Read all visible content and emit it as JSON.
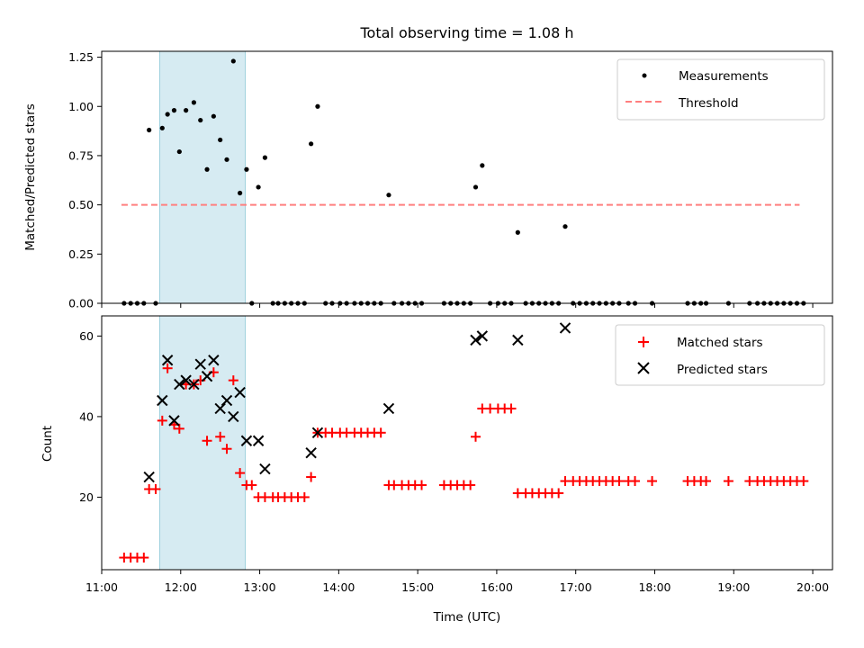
{
  "chart_data": [
    {
      "type": "scatter",
      "title": "Total observing time = 1.08 h",
      "xlabel": "",
      "ylabel": "Matched/Predicted stars",
      "xlim": [
        "11:00",
        "20:15"
      ],
      "ylim": [
        0,
        1.28
      ],
      "x_ticks": [
        "11:00",
        "12:00",
        "13:00",
        "14:00",
        "15:00",
        "16:00",
        "17:00",
        "18:00",
        "19:00",
        "20:00"
      ],
      "y_ticks": [
        "0.00",
        "0.25",
        "0.50",
        "0.75",
        "1.00",
        "1.25"
      ],
      "shaded_span": [
        "11:44",
        "12:49"
      ],
      "shade_color": "#add8e6",
      "legend": {
        "position": "top-right",
        "entries": [
          "Measurements",
          "Threshold"
        ]
      },
      "threshold": {
        "name": "Threshold",
        "value": 0.5,
        "x_range": [
          "11:15",
          "19:50"
        ],
        "color": "#ff7f7f"
      },
      "series": [
        {
          "name": "Measurements",
          "color": "#000000",
          "points": [
            [
              "11:17",
              0
            ],
            [
              "11:22",
              0
            ],
            [
              "11:27",
              0
            ],
            [
              "11:32",
              0
            ],
            [
              "11:36",
              0.88
            ],
            [
              "11:41",
              0
            ],
            [
              "11:46",
              0.89
            ],
            [
              "11:50",
              0.96
            ],
            [
              "11:55",
              0.98
            ],
            [
              "11:59",
              0.77
            ],
            [
              "12:04",
              0.98
            ],
            [
              "12:10",
              1.02
            ],
            [
              "12:15",
              0.93
            ],
            [
              "12:20",
              0.68
            ],
            [
              "12:25",
              0.95
            ],
            [
              "12:30",
              0.83
            ],
            [
              "12:35",
              0.73
            ],
            [
              "12:40",
              1.23
            ],
            [
              "12:45",
              0.56
            ],
            [
              "12:50",
              0.68
            ],
            [
              "12:54",
              0
            ],
            [
              "12:59",
              0.59
            ],
            [
              "13:04",
              0.74
            ],
            [
              "13:10",
              0
            ],
            [
              "13:14",
              0
            ],
            [
              "13:19",
              0
            ],
            [
              "13:24",
              0
            ],
            [
              "13:29",
              0
            ],
            [
              "13:34",
              0
            ],
            [
              "13:39",
              0.81
            ],
            [
              "13:44",
              1.0
            ],
            [
              "13:50",
              0
            ],
            [
              "13:55",
              0
            ],
            [
              "14:01",
              0
            ],
            [
              "14:06",
              0
            ],
            [
              "14:12",
              0
            ],
            [
              "14:17",
              0
            ],
            [
              "14:22",
              0
            ],
            [
              "14:27",
              0
            ],
            [
              "14:32",
              0
            ],
            [
              "14:38",
              0.55
            ],
            [
              "14:42",
              0
            ],
            [
              "14:48",
              0
            ],
            [
              "14:53",
              0
            ],
            [
              "14:58",
              0
            ],
            [
              "15:03",
              0
            ],
            [
              "15:20",
              0
            ],
            [
              "15:25",
              0
            ],
            [
              "15:30",
              0
            ],
            [
              "15:35",
              0
            ],
            [
              "15:40",
              0
            ],
            [
              "15:44",
              0.59
            ],
            [
              "15:49",
              0.7
            ],
            [
              "15:55",
              0
            ],
            [
              "16:01",
              0
            ],
            [
              "16:06",
              0
            ],
            [
              "16:11",
              0
            ],
            [
              "16:16",
              0.36
            ],
            [
              "16:22",
              0
            ],
            [
              "16:27",
              0
            ],
            [
              "16:32",
              0
            ],
            [
              "16:37",
              0
            ],
            [
              "16:42",
              0
            ],
            [
              "16:47",
              0
            ],
            [
              "16:52",
              0.39
            ],
            [
              "16:58",
              0
            ],
            [
              "17:03",
              0
            ],
            [
              "17:08",
              0
            ],
            [
              "17:13",
              0
            ],
            [
              "17:18",
              0
            ],
            [
              "17:23",
              0
            ],
            [
              "17:28",
              0
            ],
            [
              "17:33",
              0
            ],
            [
              "17:40",
              0
            ],
            [
              "17:45",
              0
            ],
            [
              "17:58",
              0
            ],
            [
              "18:25",
              0
            ],
            [
              "18:30",
              0
            ],
            [
              "18:35",
              0
            ],
            [
              "18:39",
              0
            ],
            [
              "18:56",
              0
            ],
            [
              "19:12",
              0
            ],
            [
              "19:18",
              0
            ],
            [
              "19:23",
              0
            ],
            [
              "19:28",
              0
            ],
            [
              "19:33",
              0
            ],
            [
              "19:38",
              0
            ],
            [
              "19:43",
              0
            ],
            [
              "19:48",
              0
            ],
            [
              "19:53",
              0
            ]
          ]
        }
      ]
    },
    {
      "type": "scatter",
      "title": "",
      "xlabel": "Time (UTC)",
      "ylabel": "Count",
      "xlim": [
        "11:00",
        "20:15"
      ],
      "ylim": [
        2,
        65
      ],
      "x_ticks": [
        "11:00",
        "12:00",
        "13:00",
        "14:00",
        "15:00",
        "16:00",
        "17:00",
        "18:00",
        "19:00",
        "20:00"
      ],
      "y_ticks": [
        "20",
        "40",
        "60"
      ],
      "shaded_span": [
        "11:44",
        "12:49"
      ],
      "shade_color": "#add8e6",
      "legend": {
        "position": "top-right",
        "entries": [
          "Matched stars",
          "Predicted stars"
        ]
      },
      "series": [
        {
          "name": "Matched stars",
          "marker": "+",
          "color": "#ff0000",
          "points": [
            [
              "11:17",
              5
            ],
            [
              "11:22",
              5
            ],
            [
              "11:27",
              5
            ],
            [
              "11:32",
              5
            ],
            [
              "11:36",
              22
            ],
            [
              "11:41",
              22
            ],
            [
              "11:46",
              39
            ],
            [
              "11:50",
              52
            ],
            [
              "11:55",
              38
            ],
            [
              "11:59",
              37
            ],
            [
              "12:04",
              48
            ],
            [
              "12:10",
              48
            ],
            [
              "12:15",
              49
            ],
            [
              "12:20",
              34
            ],
            [
              "12:25",
              51
            ],
            [
              "12:30",
              35
            ],
            [
              "12:35",
              32
            ],
            [
              "12:40",
              49
            ],
            [
              "12:45",
              26
            ],
            [
              "12:50",
              23
            ],
            [
              "12:54",
              23
            ],
            [
              "12:59",
              20
            ],
            [
              "13:04",
              20
            ],
            [
              "13:10",
              20
            ],
            [
              "13:14",
              20
            ],
            [
              "13:19",
              20
            ],
            [
              "13:24",
              20
            ],
            [
              "13:29",
              20
            ],
            [
              "13:34",
              20
            ],
            [
              "13:39",
              25
            ],
            [
              "13:44",
              36
            ],
            [
              "13:50",
              36
            ],
            [
              "13:55",
              36
            ],
            [
              "14:01",
              36
            ],
            [
              "14:06",
              36
            ],
            [
              "14:12",
              36
            ],
            [
              "14:17",
              36
            ],
            [
              "14:22",
              36
            ],
            [
              "14:27",
              36
            ],
            [
              "14:32",
              36
            ],
            [
              "14:38",
              23
            ],
            [
              "14:42",
              23
            ],
            [
              "14:48",
              23
            ],
            [
              "14:53",
              23
            ],
            [
              "14:58",
              23
            ],
            [
              "15:03",
              23
            ],
            [
              "15:20",
              23
            ],
            [
              "15:25",
              23
            ],
            [
              "15:30",
              23
            ],
            [
              "15:35",
              23
            ],
            [
              "15:40",
              23
            ],
            [
              "15:44",
              35
            ],
            [
              "15:49",
              42
            ],
            [
              "15:55",
              42
            ],
            [
              "16:01",
              42
            ],
            [
              "16:06",
              42
            ],
            [
              "16:11",
              42
            ],
            [
              "16:16",
              21
            ],
            [
              "16:22",
              21
            ],
            [
              "16:27",
              21
            ],
            [
              "16:32",
              21
            ],
            [
              "16:37",
              21
            ],
            [
              "16:42",
              21
            ],
            [
              "16:47",
              21
            ],
            [
              "16:52",
              24
            ],
            [
              "16:58",
              24
            ],
            [
              "17:03",
              24
            ],
            [
              "17:08",
              24
            ],
            [
              "17:13",
              24
            ],
            [
              "17:18",
              24
            ],
            [
              "17:23",
              24
            ],
            [
              "17:28",
              24
            ],
            [
              "17:33",
              24
            ],
            [
              "17:40",
              24
            ],
            [
              "17:45",
              24
            ],
            [
              "17:58",
              24
            ],
            [
              "18:25",
              24
            ],
            [
              "18:30",
              24
            ],
            [
              "18:35",
              24
            ],
            [
              "18:39",
              24
            ],
            [
              "18:56",
              24
            ],
            [
              "19:12",
              24
            ],
            [
              "19:18",
              24
            ],
            [
              "19:23",
              24
            ],
            [
              "19:28",
              24
            ],
            [
              "19:33",
              24
            ],
            [
              "19:38",
              24
            ],
            [
              "19:43",
              24
            ],
            [
              "19:48",
              24
            ],
            [
              "19:53",
              24
            ]
          ]
        },
        {
          "name": "Predicted stars",
          "marker": "x",
          "color": "#000000",
          "points": [
            [
              "11:36",
              25
            ],
            [
              "11:46",
              44
            ],
            [
              "11:50",
              54
            ],
            [
              "11:55",
              39
            ],
            [
              "11:59",
              48
            ],
            [
              "12:04",
              49
            ],
            [
              "12:10",
              48
            ],
            [
              "12:15",
              53
            ],
            [
              "12:20",
              50
            ],
            [
              "12:25",
              54
            ],
            [
              "12:30",
              42
            ],
            [
              "12:35",
              44
            ],
            [
              "12:40",
              40
            ],
            [
              "12:45",
              46
            ],
            [
              "12:50",
              34
            ],
            [
              "12:59",
              34
            ],
            [
              "13:04",
              27
            ],
            [
              "13:39",
              31
            ],
            [
              "13:44",
              36
            ],
            [
              "14:38",
              42
            ],
            [
              "15:44",
              59
            ],
            [
              "15:49",
              60
            ],
            [
              "16:16",
              59
            ],
            [
              "16:52",
              62
            ]
          ]
        }
      ]
    }
  ]
}
